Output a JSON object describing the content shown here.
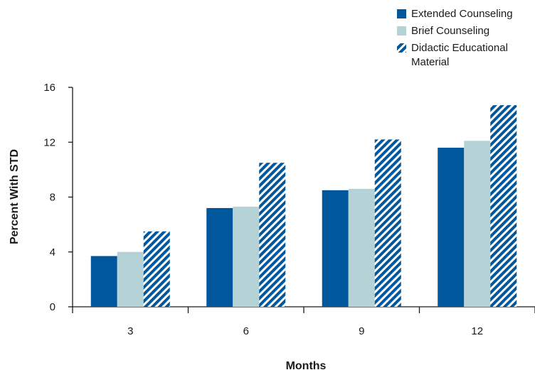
{
  "chart_data": {
    "type": "bar",
    "title": "",
    "xlabel": "Months",
    "ylabel": "Percent With STD",
    "categories": [
      "3",
      "6",
      "9",
      "12"
    ],
    "ylim": [
      0,
      16
    ],
    "yticks": [
      "0",
      "4",
      "8",
      "12",
      "16"
    ],
    "grid": false,
    "legend_position": "top-right",
    "series": [
      {
        "name": "Extended Counseling",
        "values": [
          3.7,
          7.2,
          8.5,
          11.6
        ],
        "color": "#00579b",
        "pattern": "solid"
      },
      {
        "name": "Brief Counseling",
        "values": [
          4.0,
          7.3,
          8.6,
          12.1
        ],
        "color": "#b5d3d7",
        "pattern": "solid"
      },
      {
        "name": "Didactic Educational Material",
        "values": [
          5.5,
          10.5,
          12.2,
          14.7
        ],
        "color": "#00579b",
        "pattern": "diagonal-stripes"
      }
    ],
    "legend_lines": [
      [
        "Extended Counseling"
      ],
      [
        "Brief Counseling"
      ],
      [
        "Didactic Educational",
        "Material"
      ]
    ]
  }
}
